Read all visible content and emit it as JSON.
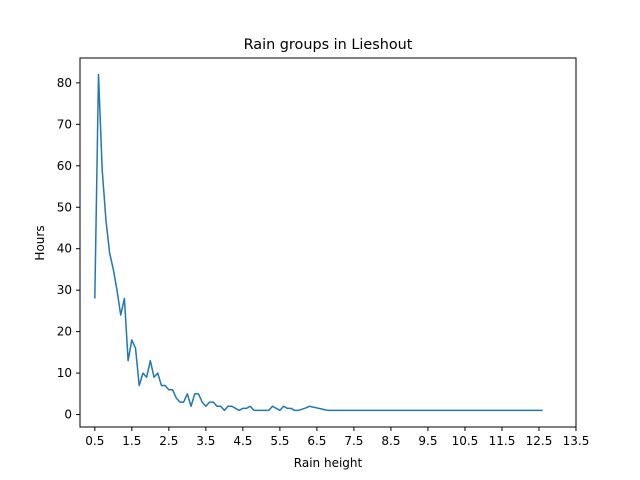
{
  "chart_data": {
    "type": "line",
    "title": "Rain groups in Lieshout",
    "xlabel": "Rain height",
    "ylabel": "Hours",
    "xlim": [
      0.1,
      13.5
    ],
    "ylim": [
      -3,
      86
    ],
    "x_ticks": [
      "0.5",
      "1.5",
      "2.5",
      "3.5",
      "4.5",
      "5.5",
      "6.5",
      "7.5",
      "8.5",
      "9.5",
      "10.5",
      "11.5",
      "12.5",
      "13.5"
    ],
    "y_ticks": [
      "0",
      "10",
      "20",
      "30",
      "40",
      "50",
      "60",
      "70",
      "80"
    ],
    "grid": false,
    "series": [
      {
        "color": "#1f77b4",
        "x": [
          0.5,
          0.6,
          0.7,
          0.8,
          0.9,
          1.0,
          1.1,
          1.2,
          1.3,
          1.4,
          1.5,
          1.6,
          1.7,
          1.8,
          1.9,
          2.0,
          2.1,
          2.2,
          2.3,
          2.4,
          2.5,
          2.6,
          2.7,
          2.8,
          2.9,
          3.0,
          3.1,
          3.2,
          3.3,
          3.4,
          3.5,
          3.6,
          3.7,
          3.8,
          3.9,
          4.0,
          4.1,
          4.2,
          4.3,
          4.4,
          4.5,
          4.6,
          4.7,
          4.8,
          4.9,
          5.0,
          5.1,
          5.2,
          5.3,
          5.4,
          5.5,
          5.6,
          5.7,
          5.8,
          5.9,
          6.0,
          6.1,
          6.2,
          6.3,
          6.4,
          6.5,
          6.6,
          6.7,
          6.8,
          7.0,
          8.0,
          9.0,
          10.0,
          11.0,
          12.0,
          12.6
        ],
        "y": [
          28,
          82,
          59,
          47,
          39,
          35,
          30,
          24,
          28,
          13,
          18,
          16,
          7,
          10,
          9,
          13,
          9,
          10,
          7,
          7,
          6,
          6,
          4,
          3,
          3,
          5,
          2,
          5,
          5,
          3,
          2,
          3,
          3,
          2,
          2,
          1,
          2,
          2,
          1.5,
          1,
          1.5,
          1.5,
          2,
          1,
          1,
          1,
          1,
          1,
          2,
          1.5,
          1,
          2,
          1.5,
          1.5,
          1,
          1,
          1.3,
          1.6,
          2,
          1.8,
          1.6,
          1.4,
          1.2,
          1,
          1,
          1,
          1,
          1,
          1,
          1,
          1
        ]
      }
    ]
  }
}
